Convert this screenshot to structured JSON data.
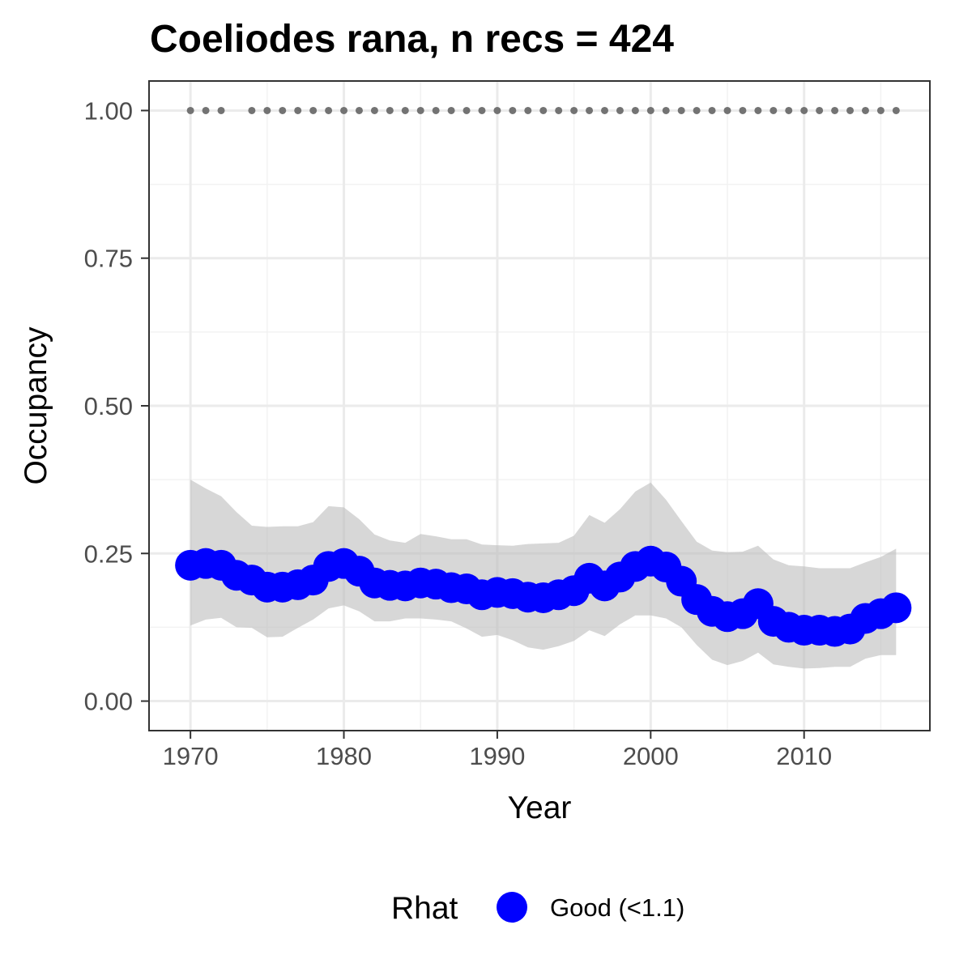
{
  "chart_data": {
    "type": "line",
    "title": "Coeliodes rana, n recs = 424",
    "xlabel": "Year",
    "ylabel": "Occupancy",
    "xlim": [
      1967.3,
      2018.2
    ],
    "ylim": [
      -0.05,
      1.05
    ],
    "x_ticks": [
      1970,
      1980,
      1990,
      2000,
      2010
    ],
    "x_tick_labels": [
      "1970",
      "1980",
      "1990",
      "2000",
      "2010"
    ],
    "y_ticks": [
      0.0,
      0.25,
      0.5,
      0.75,
      1.0
    ],
    "y_tick_labels": [
      "0.00",
      "0.25",
      "0.50",
      "0.75",
      "1.00"
    ],
    "grid": true,
    "legend": {
      "title": "Rhat",
      "position": "bottom",
      "entries": [
        {
          "label": "Good (<1.1)",
          "color": "#0000ff"
        }
      ]
    },
    "series": [
      {
        "name": "Good (<1.1)",
        "color": "#0000ff",
        "x": [
          1970,
          1971,
          1972,
          1973,
          1974,
          1975,
          1976,
          1977,
          1978,
          1979,
          1980,
          1981,
          1982,
          1983,
          1984,
          1985,
          1986,
          1987,
          1988,
          1989,
          1990,
          1991,
          1992,
          1993,
          1994,
          1995,
          1996,
          1997,
          1998,
          1999,
          2000,
          2001,
          2002,
          2003,
          2004,
          2005,
          2006,
          2007,
          2008,
          2009,
          2010,
          2011,
          2012,
          2013,
          2014,
          2015,
          2016
        ],
        "y": [
          0.23,
          0.233,
          0.23,
          0.213,
          0.205,
          0.193,
          0.193,
          0.197,
          0.205,
          0.228,
          0.233,
          0.22,
          0.2,
          0.196,
          0.195,
          0.2,
          0.198,
          0.192,
          0.19,
          0.18,
          0.184,
          0.182,
          0.176,
          0.175,
          0.18,
          0.187,
          0.208,
          0.195,
          0.21,
          0.228,
          0.237,
          0.227,
          0.203,
          0.172,
          0.152,
          0.143,
          0.148,
          0.165,
          0.135,
          0.125,
          0.12,
          0.12,
          0.118,
          0.122,
          0.14,
          0.148,
          0.158
        ],
        "lower": [
          0.128,
          0.138,
          0.141,
          0.125,
          0.124,
          0.108,
          0.109,
          0.124,
          0.138,
          0.157,
          0.162,
          0.152,
          0.135,
          0.135,
          0.14,
          0.14,
          0.138,
          0.135,
          0.123,
          0.109,
          0.112,
          0.103,
          0.091,
          0.087,
          0.093,
          0.102,
          0.12,
          0.11,
          0.13,
          0.145,
          0.145,
          0.14,
          0.125,
          0.095,
          0.07,
          0.061,
          0.068,
          0.082,
          0.062,
          0.058,
          0.055,
          0.056,
          0.058,
          0.058,
          0.072,
          0.078,
          0.078
        ],
        "upper": [
          0.375,
          0.36,
          0.347,
          0.32,
          0.297,
          0.295,
          0.296,
          0.296,
          0.303,
          0.33,
          0.328,
          0.308,
          0.282,
          0.272,
          0.268,
          0.283,
          0.279,
          0.274,
          0.274,
          0.265,
          0.264,
          0.263,
          0.266,
          0.267,
          0.268,
          0.28,
          0.315,
          0.302,
          0.325,
          0.355,
          0.37,
          0.341,
          0.305,
          0.27,
          0.255,
          0.252,
          0.253,
          0.263,
          0.24,
          0.23,
          0.228,
          0.225,
          0.225,
          0.225,
          0.235,
          0.244,
          0.258
        ]
      }
    ],
    "rhat_markers": {
      "y": 1.0,
      "color": "#737373",
      "x": [
        1970,
        1971,
        1972,
        1974,
        1975,
        1976,
        1977,
        1978,
        1979,
        1980,
        1981,
        1982,
        1983,
        1984,
        1985,
        1986,
        1987,
        1988,
        1989,
        1990,
        1991,
        1992,
        1993,
        1994,
        1995,
        1996,
        1997,
        1998,
        1999,
        2000,
        2001,
        2002,
        2003,
        2004,
        2005,
        2006,
        2007,
        2008,
        2009,
        2010,
        2011,
        2012,
        2013,
        2014,
        2015,
        2016
      ]
    }
  }
}
